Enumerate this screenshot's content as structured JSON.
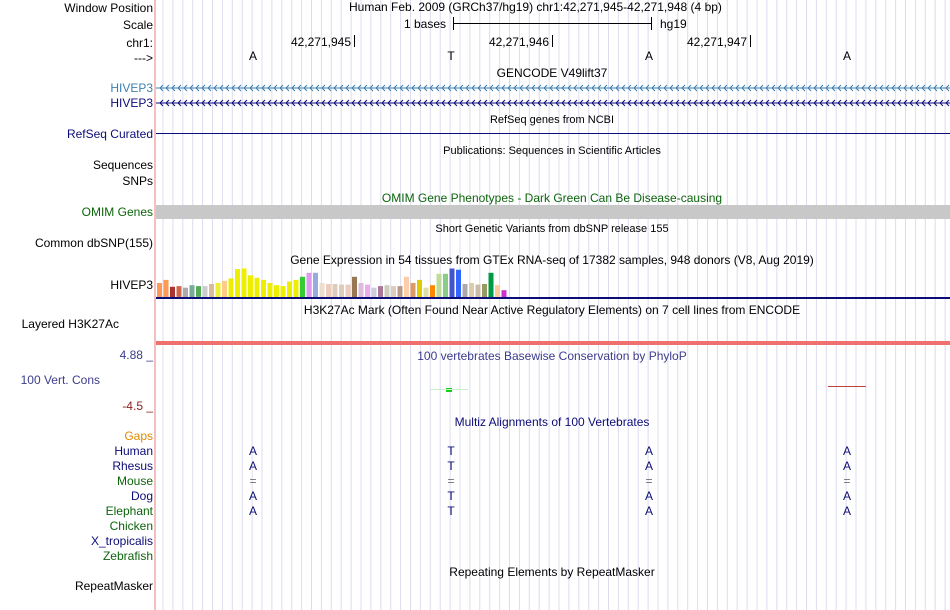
{
  "colors": {
    "divider": "#f2c0c0",
    "grid": "#d8d8f0",
    "navy": "#0c0c78",
    "blue_track": "#3d7fb0",
    "omim_bar": "#c8c8c8",
    "h3k27ac_bar": "#f07070",
    "phylop_green": "#18d018",
    "phylop_red": "#c04040"
  },
  "labels": {
    "window_position": "Window Position",
    "scale": "Scale",
    "chr": "chr1:",
    "strand": "--->",
    "hivep3_a": "HIVEP3",
    "hivep3_b": "HIVEP3",
    "refseq": "RefSeq Curated",
    "sequences": "Sequences",
    "snps": "SNPs",
    "omim": "OMIM Genes",
    "common_dbsnp": "Common dbSNP(155)",
    "hivep3_gtex": "HIVEP3",
    "h3k27ac": "Layered H3K27Ac",
    "cons_max": "4.88 _",
    "cons_label": "100 Vert. Cons",
    "cons_min": "-4.5 _",
    "gaps": "Gaps",
    "species": [
      "Human",
      "Rhesus",
      "Mouse",
      "Dog",
      "Elephant",
      "Chicken",
      "X_tropicalis",
      "Zebrafish"
    ],
    "repeatmasker": "RepeatMasker"
  },
  "header": {
    "assembly_position": "Human Feb. 2009 (GRCh37/hg19)   chr1:42,271,945-42,271,948 (4 bp)",
    "scale_text": "1 bases",
    "scale_db": "hg19",
    "coords": [
      "42,271,945",
      "42,271,946",
      "42,271,947"
    ],
    "bases": [
      "A",
      "T",
      "A",
      "A"
    ]
  },
  "tracks": {
    "gencode_title": "GENCODE V49lift37",
    "refseq_title": "RefSeq genes from NCBI",
    "publications_title": "Publications: Sequences in Scientific Articles",
    "omim_title": "OMIM Gene Phenotypes - Dark Green Can Be Disease-causing",
    "dbsnp_title": "Short Genetic Variants from dbSNP release 155",
    "gtex_title": "Gene Expression in 54 tissues from GTEx RNA-seq of 17382 samples, 948 donors (V8, Aug 2019)",
    "h3k27ac_title": "H3K27Ac Mark (Often Found Near Active Regulatory Elements) on 7 cell lines from ENCODE",
    "phylop_title": "100 vertebrates Basewise Conservation by PhyloP",
    "multiz_title": "Multiz Alignments of 100 Vertebrates",
    "repeat_title": "Repeating Elements by RepeatMasker"
  },
  "gtex": {
    "colors": [
      "#ff9955",
      "#ff9955",
      "#aa3333",
      "#cc6644",
      "#aaaaaa",
      "#77aa99",
      "#55aa55",
      "#cccccc",
      "#ddbb99",
      "#eeee33",
      "#ffcc88",
      "#eeee00",
      "#eeee00",
      "#eeee00",
      "#eeee00",
      "#eeee00",
      "#eeee00",
      "#eeee00",
      "#eeee00",
      "#eeee00",
      "#eeee00",
      "#eeee00",
      "#33cc33",
      "#dd99ee",
      "#99aadd",
      "#eeddcc",
      "#eeccbb",
      "#ddccbb",
      "#ddccbb",
      "#eeccbb",
      "#997755",
      "#ddbbdd",
      "#eeaaee",
      "#ccccdd",
      "#aa7799",
      "#ccccbb",
      "#ddccbb",
      "#bb9988",
      "#ffccaa",
      "#dd9966",
      "#ddcc00",
      "#ddddaa",
      "#ff8800",
      "#bbdd99",
      "#88cc88",
      "#4455cc",
      "#3366ff",
      "#aaaaaa",
      "#ddccaa",
      "#ccbbaa",
      "#999966",
      "#009944",
      "#ffcc99",
      "#cc33cc"
    ],
    "values": [
      0.45,
      0.55,
      0.33,
      0.35,
      0.3,
      0.38,
      0.35,
      0.35,
      0.42,
      0.45,
      0.52,
      0.6,
      0.9,
      0.92,
      0.7,
      0.62,
      0.55,
      0.45,
      0.38,
      0.35,
      0.5,
      0.55,
      0.65,
      0.78,
      0.78,
      0.45,
      0.42,
      0.42,
      0.4,
      0.4,
      0.65,
      0.45,
      0.4,
      0.3,
      0.35,
      0.38,
      0.35,
      0.35,
      0.65,
      0.45,
      0.55,
      0.3,
      0.38,
      0.75,
      0.75,
      0.92,
      0.88,
      0.42,
      0.45,
      0.4,
      0.42,
      0.78,
      0.38,
      0.22
    ]
  }
}
